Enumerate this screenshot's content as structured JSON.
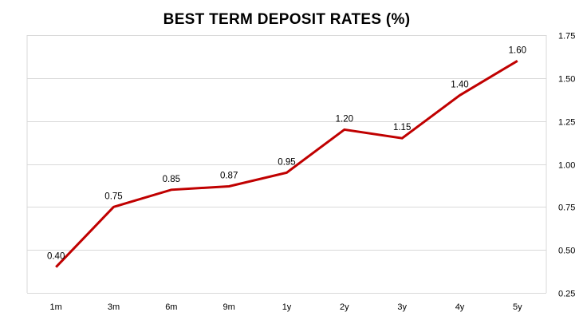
{
  "chart_data": {
    "type": "line",
    "title": "BEST TERM DEPOSIT RATES (%)",
    "xlabel": "",
    "ylabel": "",
    "categories": [
      "1m",
      "3m",
      "6m",
      "9m",
      "1y",
      "2y",
      "3y",
      "4y",
      "5y"
    ],
    "series": [
      {
        "values": [
          0.4,
          0.75,
          0.85,
          0.87,
          0.95,
          1.2,
          1.15,
          1.4,
          1.6
        ],
        "data_labels": [
          "0.40",
          "0.75",
          "0.85",
          "0.87",
          "0.95",
          "1.20",
          "1.15",
          "1.40",
          "1.60"
        ],
        "color": "#c00000"
      }
    ],
    "ylim": [
      0.25,
      1.75
    ],
    "yticks": [
      0.25,
      0.5,
      0.75,
      1.0,
      1.25,
      1.5,
      1.75
    ],
    "ytick_labels": [
      "0.25",
      "0.50",
      "0.75",
      "1.00",
      "1.25",
      "1.50",
      "1.75"
    ],
    "y_axis_position": "right",
    "grid": true,
    "grid_color": "#d9d9d9",
    "legend": "none"
  }
}
